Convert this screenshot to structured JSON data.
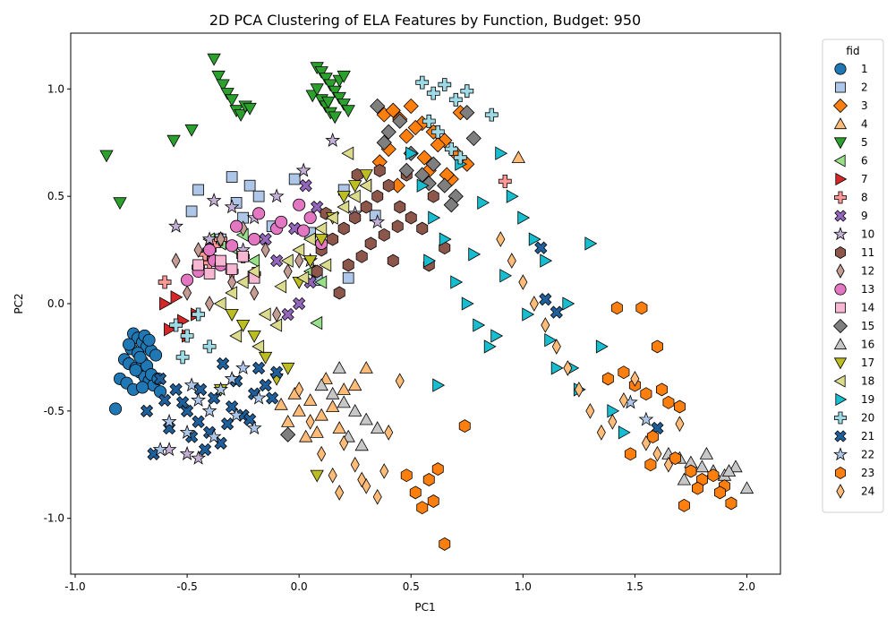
{
  "chart_data": {
    "type": "scatter",
    "title": "2D PCA Clustering of ELA Features by Function, Budget: 950",
    "xlabel": "PC1",
    "ylabel": "PC2",
    "xlim": [
      -1.02,
      2.15
    ],
    "ylim": [
      -1.26,
      1.26
    ],
    "xticks": [
      -1.0,
      -0.5,
      0.0,
      0.5,
      1.0,
      1.5,
      2.0
    ],
    "xtick_labels": [
      "-1.0",
      "-0.5",
      "0.0",
      "0.5",
      "1.0",
      "1.5",
      "2.0"
    ],
    "yticks": [
      -1.0,
      -0.5,
      0.0,
      0.5,
      1.0
    ],
    "ytick_labels": [
      "-1.0",
      "-0.5",
      "0.0",
      "0.5",
      "1.0"
    ],
    "grid": false,
    "legend": {
      "title": "fid",
      "placement": "outside-right"
    },
    "series": [
      {
        "name": "1",
        "marker": "circle",
        "color": "#1f77b4",
        "x": [
          -0.82,
          -0.74,
          -0.72,
          -0.7,
          -0.68,
          -0.66,
          -0.64,
          -0.78,
          -0.76,
          -0.73,
          -0.71,
          -0.69,
          -0.67,
          -0.65,
          -0.75,
          -0.72,
          -0.7,
          -0.68,
          -0.66,
          -0.62,
          -0.8,
          -0.77,
          -0.74,
          -0.71,
          -0.69,
          -0.73,
          -0.67,
          -0.63,
          -0.76,
          -0.7
        ],
        "y": [
          -0.49,
          -0.14,
          -0.16,
          -0.18,
          -0.2,
          -0.22,
          -0.24,
          -0.26,
          -0.28,
          -0.3,
          -0.32,
          -0.34,
          -0.36,
          -0.38,
          -0.21,
          -0.23,
          -0.27,
          -0.29,
          -0.33,
          -0.41,
          -0.35,
          -0.37,
          -0.4,
          -0.25,
          -0.15,
          -0.31,
          -0.17,
          -0.35,
          -0.19,
          -0.39
        ]
      },
      {
        "name": "2",
        "marker": "square",
        "color": "#aec7e8",
        "x": [
          -0.45,
          -0.3,
          -0.22,
          -0.18,
          -0.02,
          0.08,
          0.2,
          0.22,
          0.34,
          -0.48,
          -0.28,
          -0.12,
          0.05,
          -0.35,
          -0.25
        ],
        "y": [
          0.53,
          0.59,
          0.55,
          0.5,
          0.58,
          0.11,
          0.53,
          0.12,
          0.41,
          0.43,
          0.47,
          0.36,
          0.33,
          0.3,
          0.4
        ]
      },
      {
        "name": "3",
        "marker": "diamond",
        "color": "#ff7f0e",
        "x": [
          0.38,
          0.42,
          0.45,
          0.5,
          0.55,
          0.6,
          0.65,
          0.7,
          0.75,
          0.4,
          0.48,
          0.58,
          0.68,
          0.36,
          0.52,
          0.62,
          0.72,
          0.44,
          0.56,
          0.66
        ],
        "y": [
          0.88,
          0.9,
          0.86,
          0.92,
          0.84,
          0.8,
          0.76,
          0.7,
          0.65,
          0.72,
          0.78,
          0.62,
          0.58,
          0.66,
          0.82,
          0.74,
          0.89,
          0.55,
          0.68,
          0.6
        ]
      },
      {
        "name": "4",
        "marker": "triangle-up",
        "color": "#ffbb78",
        "x": [
          0.0,
          0.05,
          0.1,
          -0.05,
          0.15,
          0.2,
          0.08,
          -0.02,
          0.12,
          0.3,
          0.98,
          0.25,
          0.18,
          0.03,
          -0.08
        ],
        "y": [
          -0.5,
          -0.45,
          -0.52,
          -0.55,
          -0.48,
          -0.4,
          -0.6,
          -0.42,
          -0.35,
          -0.3,
          0.68,
          -0.38,
          -0.58,
          -0.62,
          -0.47
        ]
      },
      {
        "name": "5",
        "marker": "triangle-down",
        "color": "#2ca02c",
        "x": [
          -0.38,
          -0.36,
          -0.34,
          -0.32,
          -0.3,
          -0.28,
          -0.26,
          -0.24,
          -0.22,
          -0.48,
          -0.56,
          -0.8,
          -0.86,
          0.08,
          0.1,
          0.12,
          0.14,
          0.16,
          0.18,
          0.2,
          0.22,
          0.1,
          0.12,
          0.14,
          0.16,
          0.06,
          0.08,
          0.18,
          0.2,
          0.13
        ],
        "y": [
          1.14,
          1.06,
          1.02,
          0.98,
          0.95,
          0.9,
          0.88,
          0.92,
          0.91,
          0.81,
          0.76,
          0.47,
          0.69,
          1.1,
          1.08,
          1.05,
          1.02,
          0.99,
          0.96,
          0.93,
          0.9,
          0.95,
          0.92,
          0.89,
          0.87,
          0.97,
          1.0,
          1.04,
          1.06,
          0.94
        ]
      },
      {
        "name": "6",
        "marker": "triangle-left",
        "color": "#98df8a",
        "x": [
          -0.4,
          -0.35,
          -0.3,
          -0.25,
          0.08,
          0.1,
          0.3,
          -0.42,
          -0.2,
          0.05
        ],
        "y": [
          0.3,
          0.28,
          0.26,
          0.32,
          -0.09,
          0.1,
          0.55,
          0.24,
          0.2,
          0.15
        ]
      },
      {
        "name": "7",
        "marker": "triangle-right",
        "color": "#d62728",
        "x": [
          -0.55,
          -0.58,
          -0.52,
          -0.6,
          -0.46,
          -0.5
        ],
        "y": [
          0.03,
          -0.12,
          -0.08,
          0.0,
          -0.05,
          -0.15
        ]
      },
      {
        "name": "8",
        "marker": "plus",
        "color": "#ff9896",
        "x": [
          -0.6,
          -0.42,
          -0.4,
          -0.38,
          -0.3,
          -0.2,
          0.92,
          -0.35,
          -0.25,
          -0.45
        ],
        "y": [
          0.1,
          0.23,
          0.19,
          0.27,
          0.15,
          0.14,
          0.57,
          0.3,
          0.22,
          0.17
        ]
      },
      {
        "name": "9",
        "marker": "x",
        "color": "#9467bd",
        "x": [
          -0.05,
          0.0,
          0.05,
          -0.1,
          -0.15,
          0.03,
          -0.02,
          0.08
        ],
        "y": [
          -0.05,
          0.0,
          0.1,
          0.2,
          0.3,
          0.55,
          0.35,
          0.45
        ]
      },
      {
        "name": "10",
        "marker": "star",
        "color": "#c5b0d5",
        "x": [
          -0.58,
          -0.5,
          -0.45,
          -0.38,
          -0.3,
          -0.2,
          -0.1,
          0.02,
          0.15,
          0.25,
          0.35,
          -0.55,
          -0.4,
          -0.25,
          0.05
        ],
        "y": [
          -0.68,
          -0.7,
          -0.72,
          0.48,
          0.45,
          0.4,
          0.5,
          0.62,
          0.76,
          0.42,
          0.38,
          0.36,
          0.3,
          0.25,
          0.2
        ]
      },
      {
        "name": "11",
        "marker": "hexagon",
        "color": "#8c564b",
        "x": [
          0.1,
          0.15,
          0.2,
          0.25,
          0.3,
          0.35,
          0.4,
          0.45,
          0.5,
          0.55,
          0.6,
          0.65,
          0.22,
          0.28,
          0.32,
          0.38,
          0.42,
          0.18,
          0.26,
          0.48,
          0.58,
          0.08,
          0.12,
          0.36,
          0.44
        ],
        "y": [
          0.25,
          0.3,
          0.35,
          0.4,
          0.45,
          0.5,
          0.55,
          0.45,
          0.4,
          0.35,
          0.5,
          0.26,
          0.18,
          0.22,
          0.28,
          0.32,
          0.2,
          0.05,
          0.6,
          0.6,
          0.18,
          0.15,
          0.42,
          0.62,
          0.36
        ]
      },
      {
        "name": "12",
        "marker": "thin-diamond",
        "color": "#c49c94",
        "x": [
          -0.55,
          -0.45,
          -0.35,
          -0.25,
          -0.15,
          -0.05,
          -0.5,
          -0.4,
          -0.3,
          -0.2,
          -0.1,
          0.0
        ],
        "y": [
          0.2,
          0.25,
          0.3,
          0.35,
          0.25,
          0.15,
          0.05,
          0.0,
          0.1,
          0.05,
          -0.05,
          0.2
        ]
      },
      {
        "name": "13",
        "marker": "circle",
        "color": "#e377c2",
        "x": [
          -0.5,
          -0.45,
          -0.38,
          -0.3,
          -0.2,
          -0.1,
          0.0,
          0.05,
          0.1,
          -0.28,
          -0.18,
          -0.08,
          0.02,
          -0.4,
          -0.35
        ],
        "y": [
          0.11,
          0.15,
          0.2,
          0.27,
          0.3,
          0.35,
          0.46,
          0.4,
          0.28,
          0.36,
          0.42,
          0.38,
          0.34,
          0.25,
          0.18
        ]
      },
      {
        "name": "14",
        "marker": "square",
        "color": "#f7b6d2",
        "x": [
          -0.45,
          -0.4,
          -0.35,
          -0.3,
          -0.25,
          -0.2
        ],
        "y": [
          0.18,
          0.14,
          0.2,
          0.16,
          0.22,
          0.12
        ]
      },
      {
        "name": "15",
        "marker": "diamond",
        "color": "#7f7f7f",
        "x": [
          0.35,
          0.4,
          0.45,
          0.5,
          0.55,
          0.6,
          0.65,
          0.7,
          0.75,
          0.78,
          -0.05,
          0.38,
          0.48,
          0.58,
          0.68
        ],
        "y": [
          0.92,
          0.8,
          0.85,
          0.7,
          0.6,
          0.65,
          0.55,
          0.5,
          0.89,
          0.77,
          -0.61,
          0.75,
          0.62,
          0.56,
          0.46
        ]
      },
      {
        "name": "16",
        "marker": "triangle-up",
        "color": "#c7c7c7",
        "x": [
          0.1,
          0.15,
          0.2,
          0.25,
          0.3,
          0.35,
          0.22,
          0.28,
          0.18,
          1.65,
          1.7,
          1.75,
          1.8,
          1.85,
          1.9,
          1.95,
          2.0,
          1.72,
          1.82,
          1.92
        ],
        "y": [
          -0.38,
          -0.42,
          -0.46,
          -0.5,
          -0.54,
          -0.58,
          -0.62,
          -0.66,
          -0.3,
          -0.7,
          -0.72,
          -0.74,
          -0.76,
          -0.78,
          -0.8,
          -0.76,
          -0.86,
          -0.82,
          -0.7,
          -0.78
        ]
      },
      {
        "name": "17",
        "marker": "triangle-down",
        "color": "#bcbd22",
        "x": [
          -0.3,
          -0.25,
          -0.2,
          -0.15,
          -0.1,
          -0.05,
          0.0,
          0.05,
          0.1,
          0.15,
          0.2,
          0.25,
          0.3,
          -0.35,
          0.08
        ],
        "y": [
          -0.05,
          -0.1,
          -0.15,
          -0.25,
          -0.35,
          -0.3,
          0.1,
          0.2,
          0.3,
          0.4,
          0.5,
          0.55,
          0.6,
          -0.4,
          -0.8
        ]
      },
      {
        "name": "18",
        "marker": "triangle-left",
        "color": "#dbdb8d",
        "x": [
          -0.35,
          -0.3,
          -0.25,
          -0.2,
          -0.15,
          -0.1,
          -0.05,
          0.0,
          0.05,
          0.1,
          0.15,
          0.2,
          0.25,
          0.3,
          -0.28,
          -0.18,
          -0.08,
          0.02,
          0.12,
          0.22
        ],
        "y": [
          0.0,
          0.05,
          0.1,
          0.15,
          -0.05,
          -0.1,
          0.2,
          0.25,
          0.3,
          0.35,
          0.4,
          0.45,
          0.5,
          0.55,
          -0.15,
          -0.2,
          0.08,
          0.12,
          0.18,
          0.7
        ]
      },
      {
        "name": "19",
        "marker": "triangle-right",
        "color": "#17becf",
        "x": [
          0.5,
          0.55,
          0.6,
          0.65,
          0.7,
          0.75,
          0.8,
          0.85,
          0.9,
          0.95,
          1.0,
          1.05,
          1.1,
          1.15,
          1.2,
          1.25,
          1.3,
          1.35,
          1.4,
          1.45,
          0.62,
          0.72,
          0.82,
          0.92,
          1.02,
          1.12,
          1.22,
          0.58,
          0.78,
          0.88
        ],
        "y": [
          0.7,
          0.55,
          0.4,
          0.3,
          0.1,
          0.0,
          -0.1,
          -0.2,
          0.7,
          0.5,
          0.4,
          0.3,
          0.2,
          -0.3,
          0.0,
          -0.4,
          0.28,
          -0.2,
          -0.5,
          -0.6,
          -0.38,
          0.65,
          0.47,
          0.13,
          -0.05,
          -0.17,
          -0.3,
          0.2,
          0.23,
          -0.15
        ]
      },
      {
        "name": "20",
        "marker": "plus",
        "color": "#9edae5",
        "x": [
          0.55,
          0.6,
          0.65,
          0.7,
          0.75,
          0.86,
          0.58,
          0.62,
          0.68,
          0.72,
          -0.55,
          -0.5,
          -0.45,
          -0.4,
          -0.52
        ],
        "y": [
          1.03,
          0.98,
          1.02,
          0.95,
          0.99,
          0.88,
          0.85,
          0.8,
          0.72,
          0.68,
          -0.1,
          -0.15,
          -0.05,
          -0.2,
          -0.25
        ]
      },
      {
        "name": "21",
        "marker": "x",
        "color": "#1f5f9a",
        "x": [
          -0.65,
          -0.6,
          -0.55,
          -0.5,
          -0.45,
          -0.4,
          -0.35,
          -0.3,
          -0.25,
          -0.2,
          -0.15,
          -0.1,
          -0.58,
          -0.48,
          -0.38,
          -0.28,
          -0.18,
          -0.62,
          -0.42,
          -0.32,
          1.08,
          1.1,
          1.15,
          1.6,
          -0.52,
          -0.22,
          -0.68,
          -0.12,
          -0.44,
          -0.34
        ],
        "y": [
          -0.7,
          -0.45,
          -0.4,
          -0.5,
          -0.55,
          -0.6,
          -0.65,
          -0.48,
          -0.52,
          -0.42,
          -0.38,
          -0.32,
          -0.58,
          -0.62,
          -0.44,
          -0.36,
          -0.3,
          -0.35,
          -0.68,
          -0.56,
          0.26,
          0.02,
          -0.04,
          -0.58,
          -0.46,
          -0.54,
          -0.5,
          -0.44,
          -0.4,
          -0.28
        ]
      },
      {
        "name": "22",
        "marker": "star",
        "color": "#aec7e8",
        "x": [
          -0.62,
          -0.58,
          -0.5,
          -0.45,
          -0.4,
          -0.35,
          -0.3,
          -0.25,
          -0.2,
          1.48,
          1.55,
          -0.48,
          -0.38,
          -0.28,
          -0.18
        ],
        "y": [
          -0.68,
          -0.55,
          -0.6,
          -0.45,
          -0.5,
          -0.4,
          -0.35,
          -0.3,
          -0.58,
          -0.46,
          -0.54,
          -0.38,
          -0.62,
          -0.52,
          -0.44
        ]
      },
      {
        "name": "23",
        "marker": "hexagon",
        "color": "#ff7f0e",
        "x": [
          0.48,
          0.52,
          0.55,
          0.58,
          0.6,
          0.65,
          0.62,
          1.42,
          1.45,
          1.5,
          1.55,
          1.6,
          1.62,
          1.65,
          1.7,
          1.75,
          1.8,
          1.85,
          1.9,
          1.53,
          1.48,
          1.58,
          1.68,
          1.78,
          1.88,
          1.93,
          0.74,
          1.38,
          1.72,
          1.57
        ],
        "y": [
          -0.8,
          -0.88,
          -0.95,
          -0.82,
          -0.92,
          -1.12,
          -0.77,
          -0.02,
          -0.32,
          -0.38,
          -0.42,
          -0.2,
          -0.4,
          -0.46,
          -0.48,
          -0.78,
          -0.82,
          -0.8,
          -0.85,
          -0.02,
          -0.7,
          -0.62,
          -0.72,
          -0.86,
          -0.88,
          -0.93,
          -0.57,
          -0.35,
          -0.94,
          -0.75
        ]
      },
      {
        "name": "24",
        "marker": "thin-diamond",
        "color": "#ffbb78",
        "x": [
          0.0,
          0.05,
          0.1,
          0.15,
          0.2,
          0.25,
          0.3,
          0.35,
          0.4,
          0.45,
          0.9,
          0.95,
          1.0,
          1.05,
          1.1,
          1.15,
          1.2,
          1.25,
          1.3,
          1.35,
          1.4,
          1.45,
          1.5,
          1.55,
          0.28,
          0.38,
          0.18,
          1.6,
          1.65,
          1.7
        ],
        "y": [
          -0.4,
          -0.55,
          -0.7,
          -0.8,
          -0.65,
          -0.75,
          -0.85,
          -0.9,
          -0.6,
          -0.36,
          0.3,
          0.2,
          0.1,
          0.0,
          -0.1,
          -0.2,
          -0.3,
          -0.4,
          -0.5,
          -0.6,
          -0.55,
          -0.45,
          -0.35,
          -0.65,
          -0.82,
          -0.78,
          -0.88,
          -0.7,
          -0.75,
          -0.56
        ]
      }
    ]
  }
}
